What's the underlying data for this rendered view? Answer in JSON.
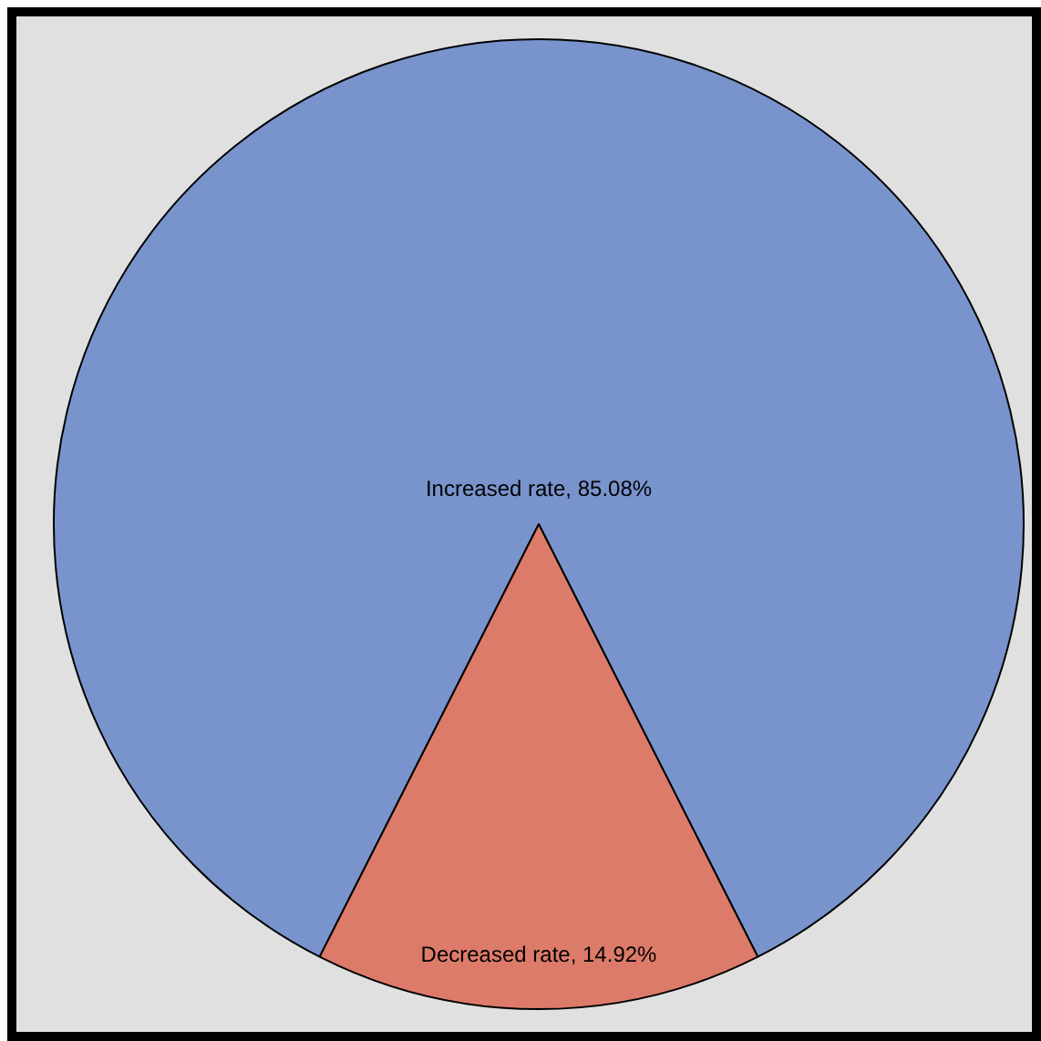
{
  "chart_data": {
    "type": "pie",
    "categories": [
      "Increased rate",
      "Decreased rate"
    ],
    "values": [
      85.08,
      14.92
    ],
    "value_labels": [
      "85.08%",
      "14.92%"
    ],
    "colors": [
      "#7994cc",
      "#dd7b6a"
    ],
    "legend": false
  }
}
